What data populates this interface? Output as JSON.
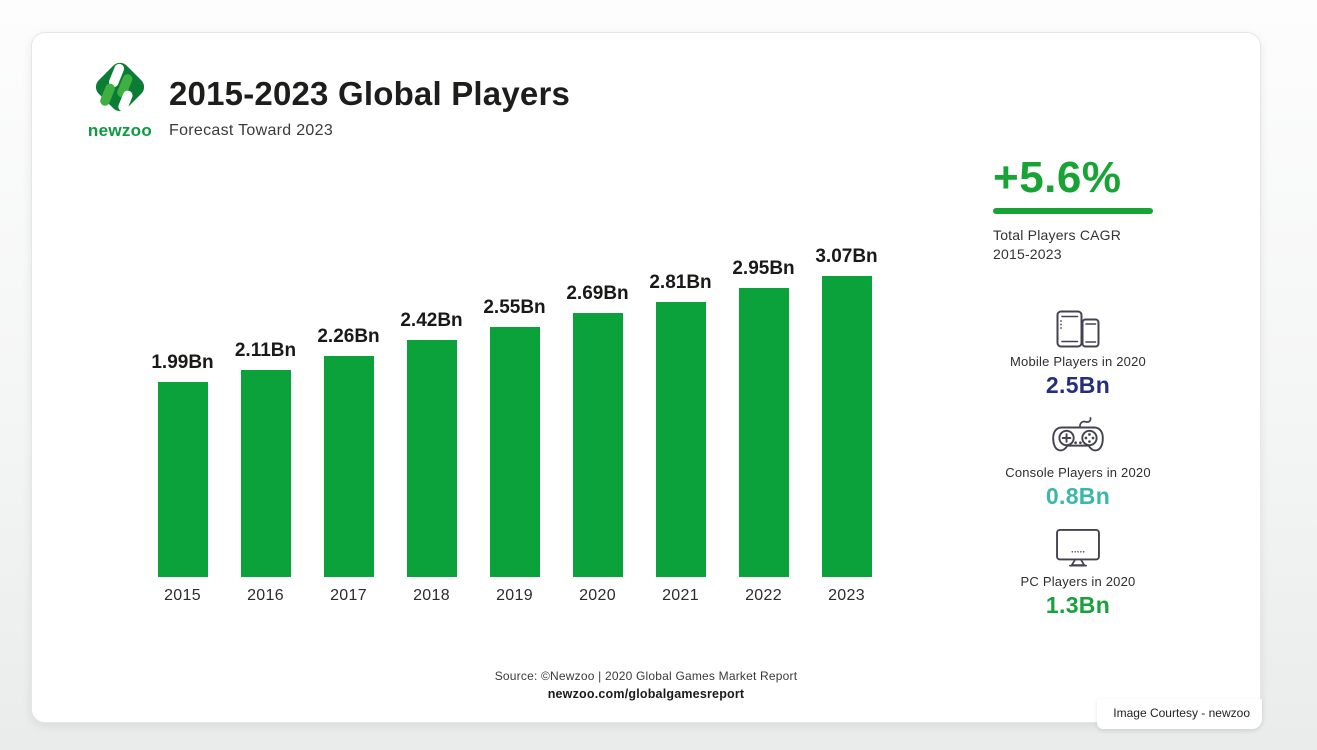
{
  "header": {
    "logo_text": "newzoo",
    "title": "2015-2023 Global Players",
    "subtitle": "Forecast Toward 2023"
  },
  "chart_data": {
    "type": "bar",
    "title": "2015-2023 Global Players",
    "subtitle": "Forecast Toward 2023",
    "categories": [
      "2015",
      "2016",
      "2017",
      "2018",
      "2019",
      "2020",
      "2021",
      "2022",
      "2023"
    ],
    "values": [
      1.99,
      2.11,
      2.26,
      2.42,
      2.55,
      2.69,
      2.81,
      2.95,
      3.07
    ],
    "value_labels": [
      "1.99Bn",
      "2.11Bn",
      "2.26Bn",
      "2.42Bn",
      "2.55Bn",
      "2.69Bn",
      "2.81Bn",
      "2.95Bn",
      "3.07Bn"
    ],
    "unit": "Bn",
    "ylabel": "",
    "xlabel": "",
    "ylim": [
      0,
      3.2
    ],
    "grid": false,
    "axis_lines": false,
    "legend": "none",
    "bar_color": "#0ba23c",
    "value_label_position": "above-bar"
  },
  "sidebar": {
    "cagr": {
      "value": "+5.6%",
      "label_line1": "Total Players CAGR",
      "label_line2": "2015-2023",
      "color": "#17a434"
    },
    "stats": [
      {
        "icon": "mobile-devices-icon",
        "label": "Mobile Players in 2020",
        "value": "2.5Bn",
        "color": "#242e7d"
      },
      {
        "icon": "gamepad-icon",
        "label": "Console Players in 2020",
        "value": "0.8Bn",
        "color": "#3ab7ab"
      },
      {
        "icon": "desktop-monitor-icon",
        "label": "PC Players in 2020",
        "value": "1.3Bn",
        "color": "#17a23c"
      }
    ]
  },
  "footer": {
    "source_line": "Source: ©Newzoo | 2020 Global Games Market Report",
    "link_line": "newzoo.com/globalgamesreport"
  },
  "page": {
    "courtesy": "Image Courtesy - newzoo"
  }
}
